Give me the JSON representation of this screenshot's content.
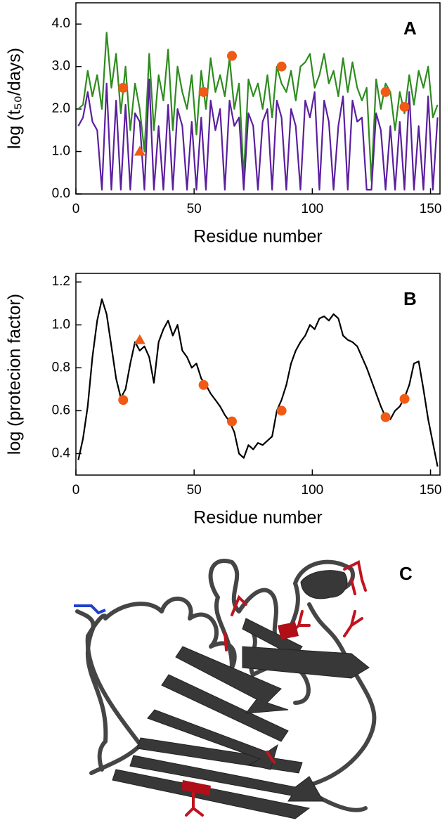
{
  "chart_data": [
    {
      "type": "line",
      "label": "A",
      "xlabel": "Residue number",
      "ylabel": "log (t₅₀/days)",
      "xlim": [
        0,
        154
      ],
      "xticks": [
        0,
        50,
        100,
        150
      ],
      "ylim": [
        0,
        4.5
      ],
      "yticks": [
        {
          "value": 0,
          "label": "0.0"
        },
        {
          "value": 1,
          "label": "1.0"
        },
        {
          "value": 2,
          "label": "2.0"
        },
        {
          "value": 3,
          "label": "3.0"
        },
        {
          "value": 4,
          "label": "4.0"
        }
      ],
      "x": [
        1,
        3,
        5,
        7,
        9,
        11,
        13,
        15,
        17,
        19,
        21,
        23,
        25,
        27,
        29,
        31,
        33,
        35,
        37,
        39,
        41,
        43,
        45,
        47,
        49,
        51,
        53,
        55,
        57,
        59,
        61,
        63,
        65,
        67,
        69,
        71,
        73,
        75,
        77,
        79,
        81,
        83,
        85,
        87,
        89,
        91,
        93,
        95,
        97,
        99,
        101,
        103,
        105,
        107,
        109,
        111,
        113,
        115,
        117,
        119,
        121,
        123,
        125,
        127,
        129,
        131,
        133,
        135,
        137,
        139,
        141,
        143,
        145,
        147,
        149,
        151,
        153
      ],
      "series": [
        {
          "color": "#2e8b1e",
          "values": [
            2.0,
            2.1,
            2.9,
            2.3,
            2.8,
            2.0,
            3.8,
            2.5,
            3.3,
            1.9,
            3.0,
            1.5,
            2.6,
            2.0,
            1.0,
            3.3,
            1.5,
            2.8,
            2.2,
            3.4,
            1.5,
            3.0,
            2.4,
            2.0,
            2.8,
            1.4,
            2.9,
            2.0,
            3.2,
            2.4,
            2.8,
            2.3,
            3.2,
            2.0,
            2.6,
            0.4,
            2.7,
            2.3,
            2.6,
            2.0,
            2.8,
            1.8,
            3.0,
            2.6,
            2.4,
            2.9,
            2.2,
            3.0,
            3.1,
            3.3,
            2.5,
            2.8,
            3.3,
            2.6,
            2.9,
            2.3,
            3.2,
            2.4,
            3.1,
            2.5,
            2.2,
            2.5,
            0.3,
            2.7,
            2.0,
            2.6,
            2.4,
            1.5,
            2.4,
            1.9,
            2.8,
            2.1,
            2.9,
            2.5,
            3.0,
            1.8,
            2.1
          ]
        },
        {
          "color": "#5b1f9e",
          "values": [
            1.6,
            1.8,
            2.4,
            1.7,
            1.5,
            0.1,
            2.6,
            0.1,
            2.2,
            0.1,
            2.1,
            0.1,
            1.9,
            1.7,
            0.1,
            2.7,
            0.1,
            1.6,
            0.1,
            2.1,
            0.1,
            2.0,
            1.6,
            0.1,
            1.7,
            0.1,
            1.8,
            0.1,
            2.2,
            1.5,
            2.0,
            0.1,
            2.2,
            1.6,
            1.8,
            0.1,
            1.9,
            1.6,
            0.1,
            1.7,
            2.0,
            0.1,
            2.2,
            1.8,
            0.1,
            2.0,
            1.6,
            0.1,
            2.2,
            1.8,
            2.4,
            0.1,
            2.2,
            1.7,
            0.1,
            1.6,
            2.3,
            0.1,
            2.2,
            1.7,
            1.8,
            0.1,
            0.1,
            1.9,
            1.5,
            0.1,
            1.6,
            0.1,
            1.7,
            0.1,
            2.4,
            0.1,
            1.6,
            0.1,
            2.3,
            0.1,
            1.8
          ]
        }
      ],
      "markers": {
        "color": "#f05a14",
        "x": [
          20,
          27,
          54,
          66,
          87,
          131,
          139
        ],
        "values": [
          2.5,
          1.0,
          2.4,
          3.25,
          3.0,
          2.4,
          2.05
        ],
        "shapes": [
          "circle",
          "triangle",
          "circle",
          "circle",
          "circle",
          "circle",
          "circle"
        ]
      }
    },
    {
      "type": "line",
      "label": "B",
      "xlabel": "Residue number",
      "ylabel": "log (protecion factor)",
      "xlim": [
        0,
        154
      ],
      "xticks": [
        0,
        50,
        100,
        150
      ],
      "ylim": [
        0.3,
        1.24
      ],
      "yticks": [
        0.4,
        0.6,
        0.8,
        {
          "value": 1,
          "label": "1.0"
        },
        1.2
      ],
      "x": [
        1,
        3,
        5,
        7,
        9,
        11,
        13,
        15,
        17,
        19,
        21,
        23,
        25,
        27,
        29,
        31,
        33,
        35,
        37,
        39,
        41,
        43,
        45,
        47,
        49,
        51,
        53,
        55,
        57,
        59,
        61,
        63,
        65,
        67,
        69,
        71,
        73,
        75,
        77,
        79,
        81,
        83,
        85,
        87,
        89,
        91,
        93,
        95,
        97,
        99,
        101,
        103,
        105,
        107,
        109,
        111,
        113,
        115,
        117,
        119,
        121,
        123,
        125,
        127,
        129,
        131,
        133,
        135,
        137,
        139,
        141,
        143,
        145,
        147,
        149,
        151,
        153
      ],
      "series": [
        {
          "color": "#000000",
          "values": [
            0.37,
            0.47,
            0.62,
            0.85,
            1.02,
            1.12,
            1.05,
            0.9,
            0.75,
            0.66,
            0.7,
            0.82,
            0.92,
            0.88,
            0.9,
            0.85,
            0.73,
            0.92,
            0.98,
            1.02,
            0.95,
            1.0,
            0.88,
            0.85,
            0.8,
            0.82,
            0.75,
            0.72,
            0.68,
            0.65,
            0.62,
            0.58,
            0.55,
            0.5,
            0.4,
            0.38,
            0.44,
            0.42,
            0.45,
            0.44,
            0.46,
            0.48,
            0.6,
            0.65,
            0.72,
            0.82,
            0.88,
            0.92,
            0.95,
            1.0,
            0.98,
            1.03,
            1.04,
            1.02,
            1.05,
            1.03,
            0.95,
            0.93,
            0.92,
            0.9,
            0.85,
            0.8,
            0.74,
            0.68,
            0.62,
            0.57,
            0.56,
            0.6,
            0.62,
            0.66,
            0.72,
            0.82,
            0.83,
            0.7,
            0.56,
            0.45,
            0.34
          ]
        }
      ],
      "markers": {
        "color": "#f05a14",
        "x": [
          20,
          27,
          54,
          66,
          87,
          131,
          139
        ],
        "values": [
          0.65,
          0.93,
          0.72,
          0.55,
          0.6,
          0.57,
          0.655
        ],
        "shapes": [
          "circle",
          "triangle",
          "circle",
          "circle",
          "circle",
          "circle",
          "circle"
        ]
      }
    }
  ],
  "panel_c": {
    "label": "C"
  }
}
